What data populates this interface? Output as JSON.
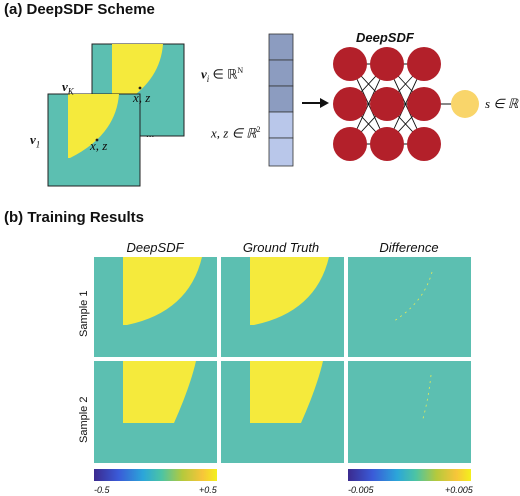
{
  "panel_a": {
    "title": "(a) DeepSDF Scheme",
    "net_title": "DeepSDF",
    "v_k": "v",
    "v_k_sub": "K",
    "v_1": "v",
    "v_1_sub": "1",
    "xz": "x, z",
    "ellipsis": "...",
    "vi_text": "v",
    "vi_sub": "i",
    "vi_rest": "∈ ℝ",
    "vi_sup": "N",
    "xz_in": "x, z ∈ ℝ",
    "xz_sup": "2",
    "s_out": "s ∈ ℝ"
  },
  "panel_b": {
    "title": "(b) Training Results",
    "columns": [
      "DeepSDF",
      "Ground Truth",
      "Difference"
    ],
    "rows": [
      "Sample 1",
      "Sample 2"
    ],
    "cbar_left": {
      "min": "-0.5",
      "max": "+0.5"
    },
    "cbar_right": {
      "min": "-0.005",
      "max": "+0.005"
    }
  },
  "colors": {
    "teal": "#5cbfb1",
    "yellow": "#f5ea3c",
    "node_red": "#b3202a",
    "node_out": "#f9d56a",
    "vec_dark": "#8c9cc0",
    "vec_light": "#b9c7ea"
  }
}
